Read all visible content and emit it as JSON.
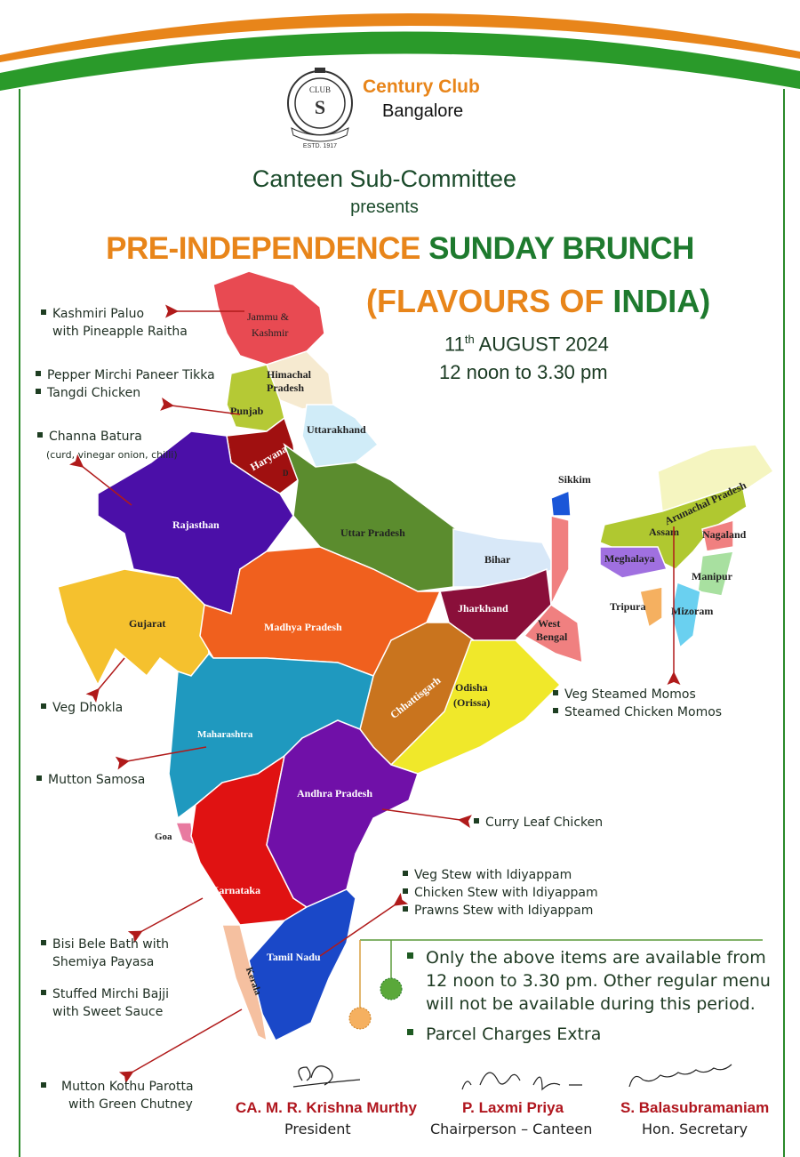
{
  "colors": {
    "saffron": "#e8851a",
    "green": "#1e7a2e",
    "dark_green": "#1a4a2a",
    "arrow_red": "#b01a1a",
    "name_red": "#b0161e"
  },
  "club": {
    "name": "Century Club",
    "city": "Bangalore",
    "logo_text": "CENTURY CLUB · BANGALORE · LEARNED LEISURE · ESTD. 1917"
  },
  "header": {
    "presenter": "Canteen Sub-Committee",
    "presents": "presents",
    "title_part1": "PRE-INDEPENDENCE",
    "title_part2": "SUNDAY BRUNCH",
    "subtitle_open": "(FLAVOURS OF ",
    "subtitle_india": "INDIA)",
    "date_day": "11",
    "date_sup": "th",
    "date_rest": " AUGUST 2024",
    "time": "12 noon to 3.30 pm"
  },
  "map_states": {
    "jk1": "Jammu &",
    "jk2": "Kashmir",
    "hp1": "Himachal",
    "hp2": "Pradesh",
    "punjab": "Punjab",
    "haryana": "Haryana",
    "delhi": "D",
    "uttarakhand": "Uttarakhand",
    "rajasthan": "Rajasthan",
    "up": "Uttar Pradesh",
    "bihar": "Bihar",
    "sikkim": "Sikkim",
    "arunachal": "Arunachal Pradesh",
    "assam": "Assam",
    "nagaland": "Nagaland",
    "meghalaya": "Meghalaya",
    "manipur": "Manipur",
    "tripura": "Tripura",
    "mizoram": "Mizoram",
    "gujarat": "Gujarat",
    "mp": "Madhya Pradesh",
    "jharkhand": "Jharkhand",
    "wb1": "West",
    "wb2": "Bengal",
    "chhattisgarh": "Chhattisgarh",
    "odisha1": "Odisha",
    "odisha2": "(Orissa)",
    "maharashtra": "Maharashtra",
    "andhra": "Andhra Pradesh",
    "goa": "Goa",
    "karnataka": "Karnataka",
    "tamilnadu": "Tamil Nadu",
    "kerala": "Kerala"
  },
  "menu": {
    "kashmir": [
      "Kashmiri Paluo",
      "with Pineapple Raitha"
    ],
    "punjab": [
      "Pepper Mirchi Paneer Tikka",
      "Tangdi Chicken"
    ],
    "haryana": {
      "item": "Channa Batura",
      "note": "(curd, vinegar onion, chilli)"
    },
    "gujarat": "Veg Dhokla",
    "maharashtra": "Mutton Samosa",
    "andhra": "Curry Leaf Chicken",
    "kerala_stew": [
      "Veg Stew with Idiyappam",
      "Chicken Stew with Idiyappam",
      "Prawns Stew with Idiyappam"
    ],
    "karnataka": [
      "Bisi Bele Bath with",
      "Shemiya Payasa"
    ],
    "karnataka2": [
      "Stuffed Mirchi Bajji",
      "with Sweet Sauce"
    ],
    "tamilnadu": [
      "Mutton Kothu Parotta",
      "with Green Chutney"
    ],
    "northeast": [
      "Veg Steamed Momos",
      "Steamed Chicken Momos"
    ]
  },
  "notes": [
    "Only the above items are available from",
    "12 noon to 3.30 pm. Other regular menu",
    "will not be available during this period.",
    "Parcel Charges Extra"
  ],
  "signatories": [
    {
      "name": "CA. M. R. Krishna Murthy",
      "role": "President"
    },
    {
      "name": "P. Laxmi Priya",
      "role": "Chairperson – Canteen"
    },
    {
      "name": "S. Balasubramaniam",
      "role": "Hon. Secretary"
    }
  ]
}
